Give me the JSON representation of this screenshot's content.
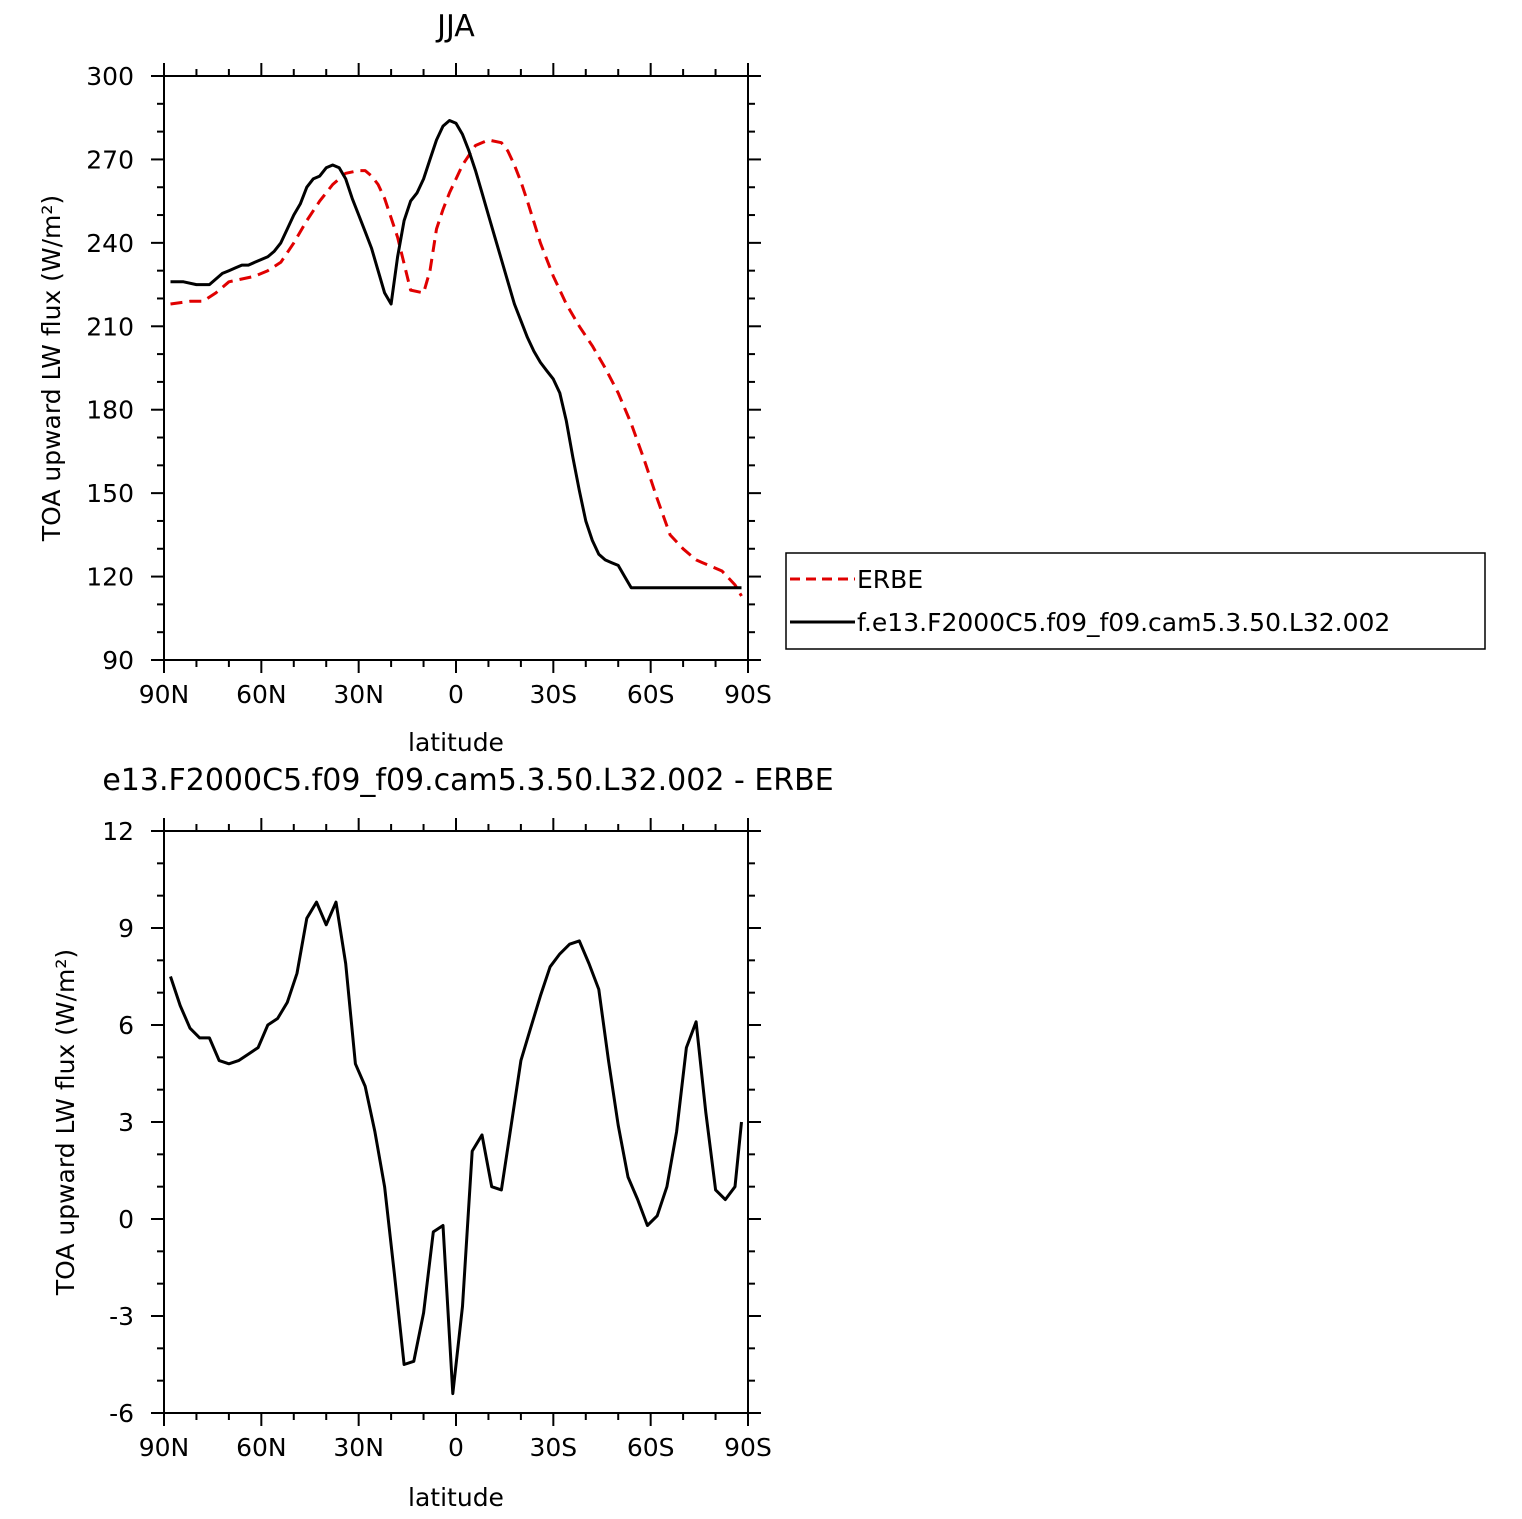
{
  "chart_data": [
    {
      "type": "line",
      "title": "JJA",
      "xlabel": "latitude",
      "ylabel": "TOA upward LW flux (W/m²)",
      "xlim": [
        -90,
        90
      ],
      "ylim": [
        90,
        300
      ],
      "xticks": [
        -90,
        -60,
        -30,
        0,
        30,
        60,
        90
      ],
      "xtick_labels": [
        "90N",
        "60N",
        "30N",
        "0",
        "30S",
        "60S",
        "90S"
      ],
      "yticks": [
        90,
        120,
        150,
        180,
        210,
        240,
        270,
        300
      ],
      "ytick_labels": [
        "90",
        "120",
        "150",
        "180",
        "210",
        "240",
        "270",
        "300"
      ],
      "grid": false,
      "legend_position": "right-outside",
      "series": [
        {
          "name": "ERBE",
          "color": "#e00000",
          "dash": "dashed",
          "x": [
            -88,
            -82,
            -78,
            -74,
            -70,
            -66,
            -62,
            -58,
            -54,
            -50,
            -46,
            -42,
            -38,
            -34,
            -30,
            -28,
            -26,
            -24,
            -22,
            -18,
            -14,
            -10,
            -8,
            -6,
            -4,
            -2,
            2,
            6,
            10,
            14,
            16,
            18,
            20,
            22,
            26,
            30,
            34,
            38,
            42,
            46,
            50,
            54,
            58,
            62,
            66,
            70,
            74,
            76,
            78,
            80,
            82,
            86,
            88
          ],
          "y": [
            218,
            219,
            219,
            222,
            226,
            227,
            228,
            230,
            233,
            240,
            248,
            255,
            261,
            265,
            266,
            266,
            264,
            261,
            256,
            242,
            223,
            222,
            230,
            245,
            252,
            258,
            268,
            275,
            277,
            276,
            273,
            268,
            262,
            255,
            240,
            228,
            218,
            210,
            203,
            195,
            186,
            175,
            162,
            148,
            135,
            130,
            126,
            125,
            124,
            123,
            122,
            117,
            113
          ]
        },
        {
          "name": "f.e13.F2000C5.f09_f09.cam5.3.50.L32.002",
          "color": "#000000",
          "dash": "solid",
          "x": [
            -88,
            -84,
            -80,
            -76,
            -74,
            -72,
            -70,
            -68,
            -66,
            -64,
            -62,
            -60,
            -58,
            -56,
            -54,
            -52,
            -50,
            -48,
            -46,
            -44,
            -42,
            -40,
            -38,
            -36,
            -34,
            -32,
            -30,
            -28,
            -26,
            -24,
            -22,
            -20,
            -18,
            -16,
            -14,
            -12,
            -10,
            -8,
            -6,
            -4,
            -2,
            0,
            2,
            4,
            6,
            8,
            10,
            12,
            14,
            16,
            18,
            20,
            22,
            24,
            26,
            28,
            30,
            32,
            34,
            36,
            38,
            40,
            42,
            44,
            46,
            48,
            50,
            52,
            54,
            56,
            58,
            60,
            62,
            64,
            66,
            68,
            70,
            72,
            74,
            76,
            78,
            80,
            82,
            84,
            86,
            88
          ],
          "y": [
            226,
            226,
            225,
            225,
            227,
            229,
            230,
            231,
            232,
            232,
            233,
            234,
            235,
            237,
            240,
            245,
            250,
            254,
            260,
            263,
            264,
            267,
            268,
            267,
            263,
            256,
            250,
            244,
            238,
            230,
            222,
            218,
            235,
            248,
            255,
            258,
            263,
            270,
            277,
            282,
            284,
            283,
            279,
            273,
            266,
            258,
            250,
            242,
            234,
            226,
            218,
            212,
            206,
            201,
            197,
            194,
            191,
            186,
            176,
            163,
            151,
            140,
            133,
            128,
            126,
            125,
            124,
            120,
            116,
            116,
            116,
            116,
            116,
            116,
            116,
            116,
            116,
            116,
            116,
            116,
            116,
            116,
            116,
            116,
            116,
            116
          ]
        }
      ]
    },
    {
      "type": "line",
      "title": "e13.F2000C5.f09_f09.cam5.3.50.L32.002 - ERBE",
      "xlabel": "latitude",
      "ylabel": "TOA upward LW flux (W/m²)",
      "xlim": [
        -90,
        90
      ],
      "ylim": [
        -6,
        12
      ],
      "xticks": [
        -90,
        -60,
        -30,
        0,
        30,
        60,
        90
      ],
      "xtick_labels": [
        "90N",
        "60N",
        "30N",
        "0",
        "30S",
        "60S",
        "90S"
      ],
      "yticks": [
        -6,
        -3,
        0,
        3,
        6,
        9,
        12
      ],
      "ytick_labels": [
        "-6",
        "-3",
        "0",
        "3",
        "6",
        "9",
        "12"
      ],
      "grid": false,
      "series": [
        {
          "color": "#000000",
          "dash": "solid",
          "x": [
            -88,
            -85,
            -82,
            -79,
            -76,
            -73,
            -70,
            -67,
            -64,
            -61,
            -58,
            -55,
            -52,
            -49,
            -46,
            -43,
            -40,
            -37,
            -34,
            -31,
            -28,
            -25,
            -22,
            -19,
            -16,
            -13,
            -10,
            -7,
            -4,
            -1,
            2,
            5,
            8,
            11,
            14,
            17,
            20,
            23,
            26,
            29,
            32,
            35,
            38,
            41,
            44,
            47,
            50,
            53,
            56,
            59,
            62,
            65,
            68,
            71,
            74,
            77,
            80,
            83,
            86,
            88
          ],
          "y": [
            7.5,
            6.6,
            5.9,
            5.6,
            5.6,
            4.9,
            4.8,
            4.9,
            5.1,
            5.3,
            6.0,
            6.2,
            6.7,
            7.6,
            9.3,
            9.8,
            9.1,
            9.8,
            7.9,
            4.8,
            4.1,
            2.7,
            1.0,
            -1.7,
            -4.5,
            -4.4,
            -2.9,
            -0.4,
            -0.2,
            -5.4,
            -2.7,
            2.1,
            2.6,
            1.0,
            0.9,
            2.9,
            4.9,
            5.9,
            6.9,
            7.8,
            8.2,
            8.5,
            8.6,
            7.9,
            7.1,
            4.9,
            2.9,
            1.3,
            0.6,
            -0.2,
            0.1,
            1.0,
            2.7,
            5.3,
            6.1,
            3.3,
            0.9,
            0.6,
            1.0,
            3.0
          ]
        }
      ]
    }
  ]
}
